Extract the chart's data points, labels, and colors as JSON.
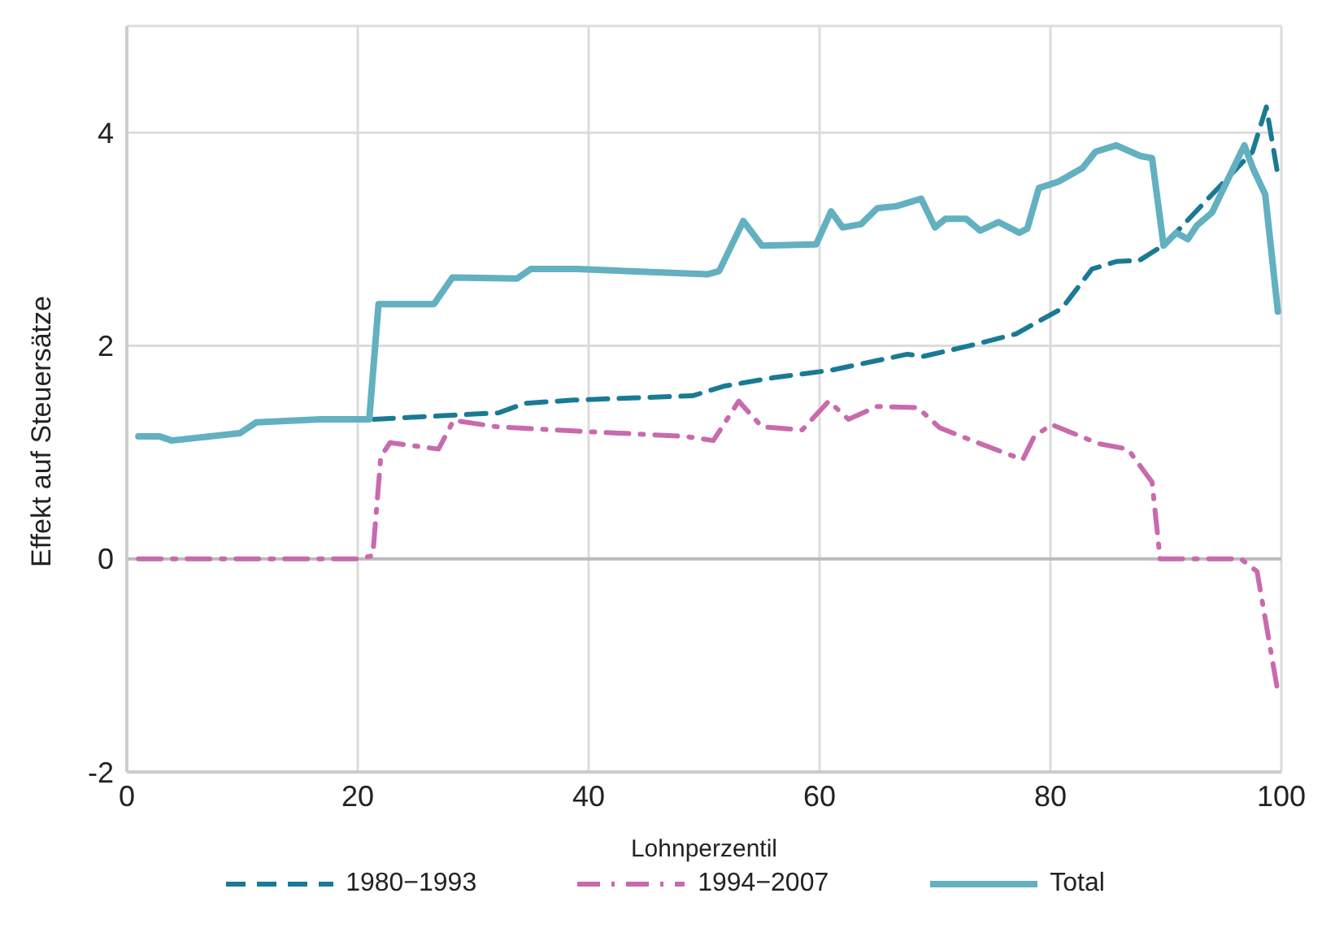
{
  "chart_data": {
    "type": "line",
    "xlabel": "Lohnperzentil",
    "ylabel": "Effekt auf Steuersätze",
    "xlim": [
      0,
      100
    ],
    "xticks": [
      0,
      20,
      40,
      60,
      80,
      100
    ],
    "ylim": [
      -2,
      5
    ],
    "yticks": [
      -2,
      0,
      2,
      4
    ],
    "grid": true,
    "legend": "bottom",
    "series": [
      {
        "name": "1980−1993",
        "color": "#1a7a94",
        "line_style": "dashed",
        "x": [
          21.4,
          32.2,
          34.5,
          38.7,
          49,
          51.7,
          56,
          61,
          67.6,
          69,
          73,
          77,
          81,
          83.6,
          85.7,
          87.7,
          89.9,
          97.5,
          98.7,
          99.7
        ],
        "values": [
          1.31,
          1.37,
          1.46,
          1.49,
          1.53,
          1.62,
          1.7,
          1.77,
          1.92,
          1.9,
          2.0,
          2.11,
          2.35,
          2.72,
          2.79,
          2.8,
          2.95,
          3.82,
          4.24,
          3.6
        ]
      },
      {
        "name": "1994−2007",
        "color": "#c86aae",
        "line_style": "dashdot",
        "x": [
          1,
          10,
          20,
          21.3,
          22,
          22.8,
          27,
          28.3,
          32,
          38.7,
          48.3,
          50.8,
          53,
          55,
          58.5,
          60.8,
          62.5,
          65,
          68.5,
          70.4,
          73.7,
          77.6,
          78.6,
          80.1,
          84.2,
          86.7,
          88.8,
          89.5,
          96.5,
          97.9,
          99.7
        ],
        "values": [
          0,
          0,
          0,
          0.03,
          0.96,
          1.09,
          1.03,
          1.3,
          1.24,
          1.2,
          1.15,
          1.11,
          1.48,
          1.24,
          1.21,
          1.48,
          1.31,
          1.43,
          1.42,
          1.23,
          1.09,
          0.93,
          1.15,
          1.26,
          1.08,
          1.03,
          0.72,
          0,
          0,
          -0.12,
          -1.25
        ]
      },
      {
        "name": "Total",
        "color": "#62b0c0",
        "line_style": "solid",
        "x": [
          1,
          2.8,
          3.9,
          9.8,
          11.2,
          16.8,
          21,
          21.8,
          26.6,
          28.2,
          33.8,
          35,
          39,
          50.3,
          51.3,
          53.4,
          55,
          59.7,
          61,
          62,
          63.6,
          65,
          66.7,
          68.8,
          70,
          70.9,
          72.7,
          73.9,
          75.5,
          77.3,
          78,
          79,
          80.7,
          82.8,
          83.9,
          85.7,
          87.8,
          88.8,
          89.8,
          90.9,
          91.9,
          92.7,
          94,
          95.1,
          96.8,
          97.6,
          98.6,
          99.7
        ],
        "values": [
          1.15,
          1.15,
          1.11,
          1.18,
          1.28,
          1.31,
          1.31,
          2.39,
          2.39,
          2.64,
          2.63,
          2.72,
          2.72,
          2.67,
          2.7,
          3.17,
          2.94,
          2.95,
          3.26,
          3.11,
          3.14,
          3.29,
          3.31,
          3.38,
          3.11,
          3.19,
          3.19,
          3.08,
          3.16,
          3.06,
          3.1,
          3.48,
          3.54,
          3.67,
          3.82,
          3.88,
          3.78,
          3.76,
          2.94,
          3.06,
          3.0,
          3.13,
          3.25,
          3.5,
          3.88,
          3.65,
          3.42,
          2.32
        ]
      }
    ]
  }
}
